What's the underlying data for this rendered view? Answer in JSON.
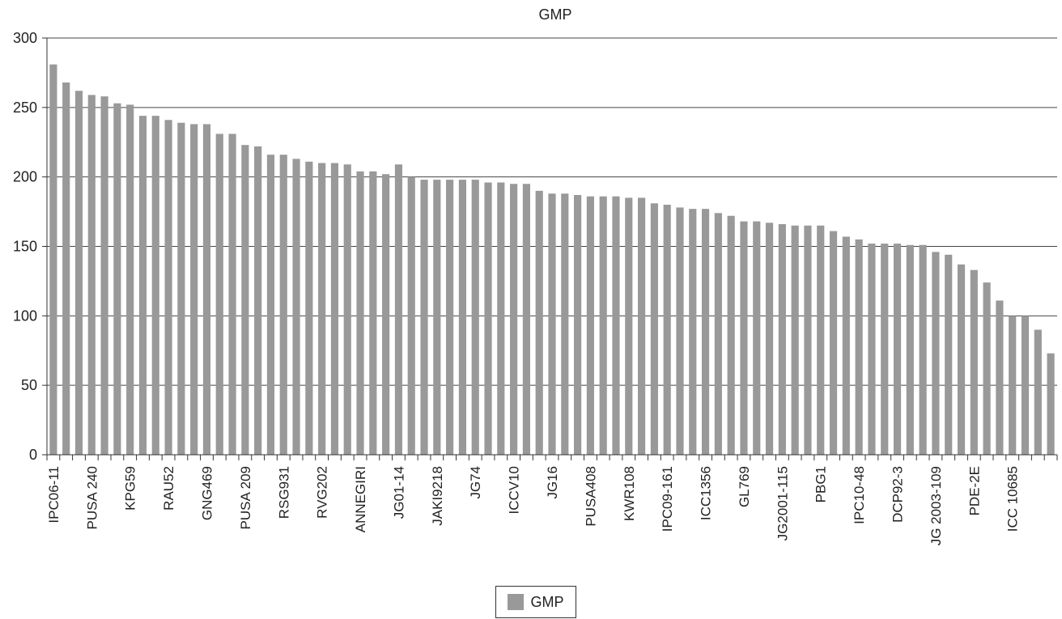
{
  "chart_data": {
    "type": "bar",
    "title": "GMP",
    "xlabel": "",
    "ylabel": "",
    "ylim": [
      0,
      300
    ],
    "yticks": [
      0,
      50,
      100,
      150,
      200,
      250,
      300
    ],
    "grid": true,
    "legend": "bottom-center",
    "bar_color": "#999999",
    "category_labels": [
      "IPC06-11",
      "PUSA 240",
      "KPG59",
      "RAU52",
      "GNG469",
      "PUSA 209",
      "RSG931",
      "RVG202",
      "ANNEGIRI",
      "JG01-14",
      "JAKI9218",
      "JG74",
      "ICCV10",
      "JG16",
      "PUSA408",
      "KWR108",
      "IPC09-161",
      "ICC1356",
      "GL769",
      "JG2001-115",
      "PBG1",
      "IPC10-48",
      "DCP92-3",
      "JG 2003-109",
      "PDE-2E",
      "ICC 10685"
    ],
    "series": [
      {
        "name": "GMP",
        "values": [
          281,
          268,
          262,
          259,
          258,
          253,
          252,
          244,
          244,
          241,
          239,
          238,
          238,
          231,
          231,
          223,
          222,
          216,
          216,
          213,
          211,
          210,
          210,
          209,
          204,
          204,
          202,
          209,
          200,
          198,
          198,
          198,
          198,
          198,
          196,
          196,
          195,
          195,
          190,
          188,
          188,
          187,
          186,
          186,
          186,
          185,
          185,
          181,
          180,
          178,
          177,
          177,
          174,
          172,
          168,
          168,
          167,
          166,
          165,
          165,
          165,
          161,
          157,
          155,
          152,
          152,
          152,
          151,
          151,
          146,
          144,
          137,
          133,
          124,
          111,
          100,
          100,
          90,
          73
        ]
      }
    ]
  }
}
